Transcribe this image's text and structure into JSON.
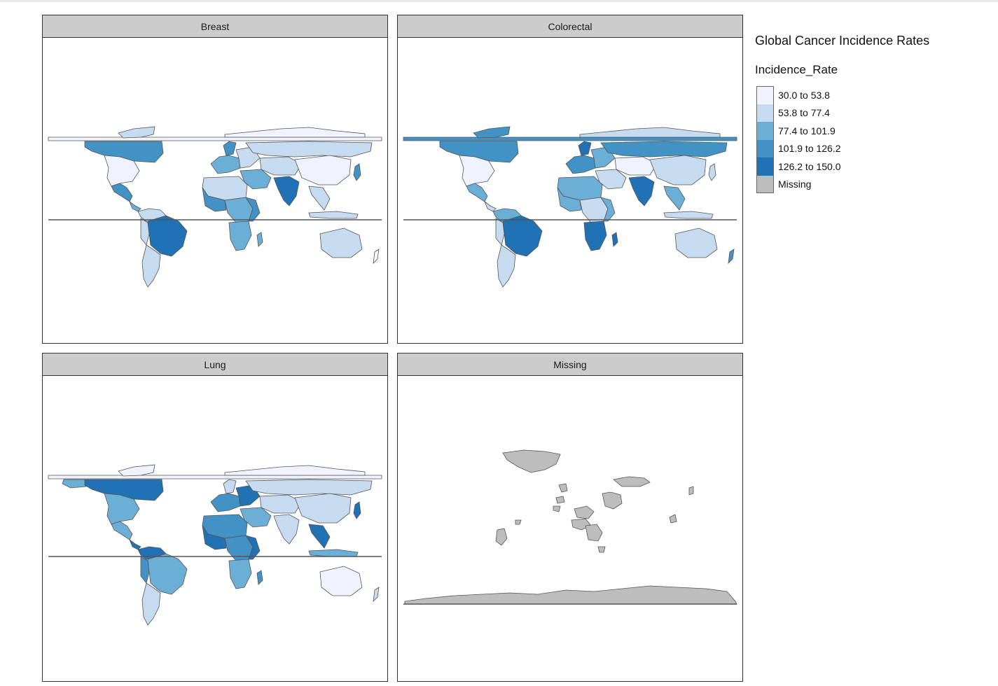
{
  "figure": {
    "title": "Global Cancer Incidence Rates"
  },
  "legend": {
    "variable": "Incidence_Rate",
    "classes": [
      {
        "label": "30.0 to 53.8",
        "color": "#eff3ff"
      },
      {
        "label": "53.8 to 77.4",
        "color": "#c6dbef"
      },
      {
        "label": "77.4 to 101.9",
        "color": "#6baed6"
      },
      {
        "label": "101.9 to 126.2",
        "color": "#4292c6"
      },
      {
        "label": "126.2 to 150.0",
        "color": "#2171b5"
      },
      {
        "label": "Missing",
        "color": "#bdbdbd"
      }
    ]
  },
  "facets": [
    {
      "label": "Breast"
    },
    {
      "label": "Colorectal"
    },
    {
      "label": "Lung"
    },
    {
      "label": "Missing"
    }
  ],
  "colors": {
    "border": "#555555",
    "strip": "#cccccc",
    "missing": "#bdbdbd"
  }
}
